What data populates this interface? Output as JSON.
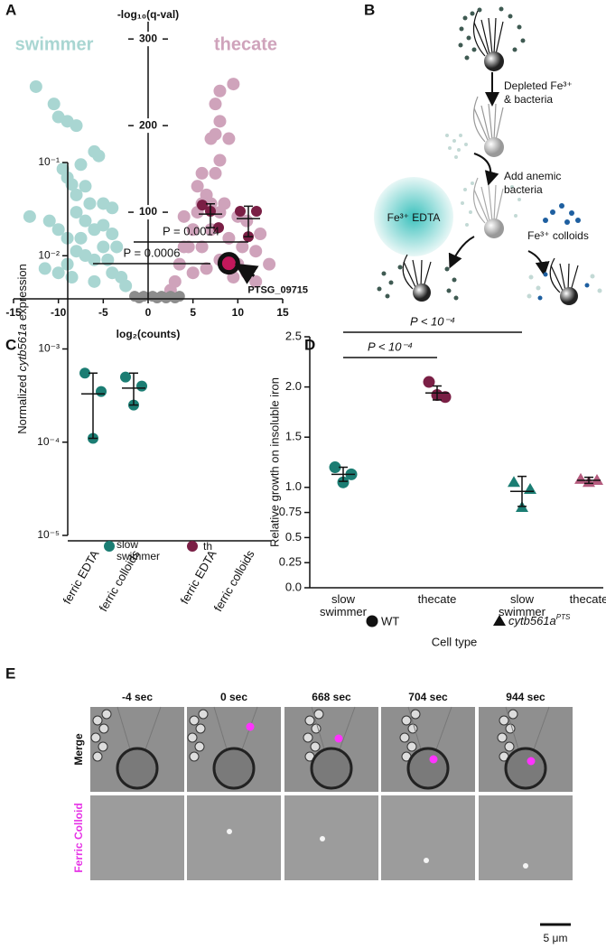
{
  "panel_labels": [
    "A",
    "B",
    "C",
    "D",
    "E"
  ],
  "chart_data": [
    {
      "type": "scatter",
      "y_label": "-log₁₀(q-val)",
      "x_label": "log₂(counts)",
      "xlim": [
        -15,
        15
      ],
      "xticks": [
        -15,
        -10,
        -5,
        0,
        5,
        10,
        15
      ],
      "ylim": [
        0,
        320
      ],
      "yticks": [
        100,
        200,
        300
      ],
      "series": [
        {
          "name": "swimmer",
          "color": "#a9d6d2",
          "x": [
            -12.5,
            -10.5,
            -10,
            -9,
            -8,
            -9.5,
            -9,
            -8.5,
            -8,
            -7.5,
            -7,
            -6,
            -5.5,
            -6.5,
            -13.2,
            -11,
            -10,
            -9,
            -8,
            -7,
            -6,
            -5,
            -4,
            -5,
            -6,
            -7,
            -8,
            -9,
            -10,
            -4.5,
            -4,
            -3,
            -3.5,
            -4,
            -5,
            -7.5,
            -2.5,
            -8.5,
            -6,
            -11.5
          ],
          "y": [
            245,
            225,
            210,
            205,
            200,
            150,
            140,
            132,
            120,
            155,
            130,
            170,
            165,
            110,
            95,
            90,
            80,
            70,
            100,
            90,
            80,
            110,
            105,
            60,
            45,
            50,
            55,
            40,
            30,
            45,
            30,
            25,
            60,
            75,
            85,
            70,
            15,
            25,
            20,
            35
          ]
        },
        {
          "name": "thecate",
          "color": "#cfa3bb",
          "x": [
            9.5,
            8,
            7.5,
            8,
            9,
            7.5,
            7,
            8,
            7.5,
            6,
            5.5,
            6.5,
            7,
            8,
            10,
            11,
            12.5,
            13.5,
            12,
            10.5,
            9,
            8,
            6,
            5,
            4,
            4.5,
            3.5,
            3,
            5,
            6.5,
            7,
            9.5,
            11,
            12,
            5.5,
            6,
            4,
            2.5,
            10,
            8.5
          ],
          "y": [
            248,
            240,
            225,
            205,
            185,
            190,
            185,
            160,
            145,
            145,
            130,
            120,
            110,
            100,
            95,
            90,
            75,
            40,
            55,
            60,
            70,
            45,
            60,
            80,
            95,
            60,
            40,
            20,
            30,
            35,
            80,
            25,
            30,
            20,
            100,
            110,
            60,
            10,
            40,
            110
          ]
        },
        {
          "color": "#8c8c8c",
          "x": [
            -1.5,
            -0.5,
            0.5,
            1.5,
            2.5,
            3.5,
            -1,
            1,
            2,
            3
          ],
          "y": [
            3,
            3,
            3,
            3,
            3,
            3,
            1,
            1,
            1,
            1
          ]
        }
      ],
      "highlight": {
        "label": "PTSG_09715",
        "x": 9,
        "y": 41,
        "color": "#c2185b"
      }
    },
    {
      "type": "dot",
      "log_scale": true,
      "y_label": {
        "pre": "Normalized ",
        "italic": "cytb561a",
        "post": " expression"
      },
      "ylim": [
        1e-05,
        0.1
      ],
      "yticks": [
        {
          "value": 0.1,
          "label": "10⁻¹"
        },
        {
          "value": 0.01,
          "label": "10⁻²"
        },
        {
          "value": 0.001,
          "label": "10⁻³"
        },
        {
          "value": 0.0001,
          "label": "10⁻⁴"
        },
        {
          "value": 1e-05,
          "label": "10⁻⁵"
        }
      ],
      "categories": [
        "ferric EDTA",
        "ferric colloids",
        "ferric EDTA",
        "ferric colloids"
      ],
      "series": [
        {
          "name": "slow swimmer",
          "color": "#1b7d73",
          "values": [
            [
              0.00055,
              0.00035,
              0.00011
            ],
            [
              0.0005,
              0.0004,
              0.00025
            ],
            null,
            null
          ],
          "mean": [
            0.00033,
            0.00038,
            null,
            null
          ],
          "error": [
            [
              0.00011,
              0.00055
            ],
            [
              0.00025,
              0.00055
            ],
            null,
            null
          ]
        },
        {
          "name": "th",
          "color": "#7a1f45",
          "values": [
            null,
            null,
            [
              0.035,
              0.02,
              0.03
            ],
            [
              0.03,
              0.03,
              0.016
            ]
          ],
          "mean": [
            null,
            null,
            0.028,
            0.025
          ],
          "error": [
            null,
            null,
            [
              0.02,
              0.036
            ],
            [
              0.016,
              0.034
            ]
          ]
        }
      ],
      "annotations": [
        "P = 0.0006",
        "P = 0.0014"
      ]
    },
    {
      "type": "dot",
      "y_label": "Relative growth on insoluble iron",
      "x_label": "Cell type",
      "ylim": [
        0,
        2.5
      ],
      "yticks": [
        {
          "value": 0,
          "label": "0.0"
        },
        0.25,
        0.5,
        0.75,
        {
          "value": 1,
          "label": "1.0"
        },
        1.5,
        {
          "value": 2,
          "label": "2.0"
        },
        2.5
      ],
      "categories": [
        "slow swimmer",
        "thecate",
        "slow swimmer",
        "thecate"
      ],
      "series": [
        {
          "name": "WT",
          "marker": "circle",
          "colors": [
            "#1b7d73",
            "#7a1f45",
            null,
            null
          ],
          "values": [
            [
              1.2,
              1.13,
              1.05
            ],
            [
              2.05,
              1.9,
              1.92
            ],
            null,
            null
          ],
          "mean": [
            1.13,
            1.94,
            null,
            null
          ],
          "sd": [
            0.07,
            0.07,
            null,
            null
          ]
        },
        {
          "name": {
            "text": "cytb561a",
            "superscript": "PTS"
          },
          "marker": "triangle",
          "colors": [
            null,
            null,
            "#1b7d73",
            "#b45b7e"
          ],
          "values": [
            null,
            null,
            [
              1.05,
              0.98,
              0.8
            ],
            [
              1.08,
              1.07,
              1.05
            ]
          ],
          "mean": [
            null,
            null,
            0.96,
            1.07
          ],
          "sd": [
            null,
            null,
            0.15,
            0.03
          ]
        }
      ],
      "annotations": [
        "P < 10⁻⁴",
        "P < 10⁻⁴"
      ]
    }
  ],
  "diagram": {
    "steps": [
      [
        "Depleted Fe³⁺",
        "& bacteria"
      ],
      [
        "Add anemic",
        "bacteria"
      ]
    ],
    "treatments": [
      "Fe³⁺ EDTA",
      "Fe³⁺ colloids"
    ]
  },
  "micrographs": {
    "times": [
      "-4 sec",
      "0 sec",
      "668 sec",
      "704 sec",
      "944 sec"
    ],
    "rows": [
      "Merge",
      "Ferric Colloid"
    ],
    "scale_bar": "5 μm"
  }
}
